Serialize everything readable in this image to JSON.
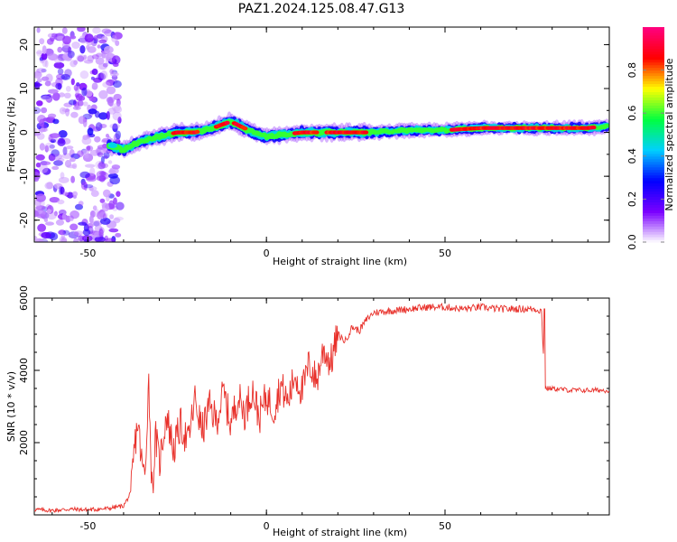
{
  "title": "PAZ1.2024.125.08.47.G13",
  "chart_data": [
    {
      "type": "heatmap",
      "xlabel": "Height of straight line (km)",
      "ylabel": "Frequency (Hz)",
      "xlim": [
        -65,
        96
      ],
      "ylim": [
        -25,
        24
      ],
      "xticks": [
        -50,
        0,
        50
      ],
      "yticks": [
        -20,
        -10,
        0,
        10,
        20
      ],
      "colorbar": {
        "label": "Normalized spectral amplitude",
        "range": [
          0.0,
          1.0
        ],
        "ticks": [
          "0.0",
          "0.2",
          "0.4",
          "0.6",
          "0.8"
        ],
        "colors": [
          "#ffffff",
          "#7b00ff",
          "#0000ff",
          "#00d0ff",
          "#00ff40",
          "#ffff00",
          "#ff0000",
          "#ff0080"
        ]
      },
      "ridge": {
        "description_points_x": [
          -44,
          -40,
          -35,
          -30,
          -25,
          -20,
          -15,
          -10,
          -5,
          0,
          5,
          10,
          20,
          30,
          40,
          50,
          60,
          70,
          80,
          90,
          96
        ],
        "frequency_y": [
          -3,
          -4,
          -2,
          -1,
          0,
          0,
          1,
          2.5,
          0.5,
          -1,
          -0.5,
          0,
          0,
          0,
          0.5,
          0.5,
          1,
          1,
          1,
          1,
          1.5
        ]
      }
    },
    {
      "type": "line",
      "xlabel": "Height of straight line (km)",
      "ylabel": "SNR (10 * v/v)",
      "xlim": [
        -65,
        96
      ],
      "ylim": [
        0,
        6000
      ],
      "xticks": [
        -50,
        0,
        50
      ],
      "yticks": [
        2000,
        4000,
        6000
      ],
      "series": [
        {
          "color": "#e8302a",
          "x": [
            -65,
            -60,
            -55,
            -50,
            -45,
            -40,
            -38,
            -37,
            -36,
            -35,
            -34,
            -33,
            -32,
            -31,
            -30,
            -28,
            -26,
            -24,
            -22,
            -20,
            -18,
            -16,
            -14,
            -12,
            -10,
            -8,
            -6,
            -4,
            -2,
            0,
            2,
            4,
            6,
            8,
            10,
            12,
            14,
            16,
            18,
            20,
            22,
            24,
            26,
            28,
            30,
            35,
            40,
            45,
            50,
            55,
            60,
            65,
            70,
            75,
            77,
            78,
            80,
            85,
            90,
            96
          ],
          "y": [
            150,
            120,
            160,
            140,
            170,
            250,
            600,
            1800,
            2600,
            1500,
            1000,
            3800,
            600,
            2200,
            1400,
            2800,
            1800,
            2500,
            2000,
            3200,
            2300,
            3000,
            2600,
            3400,
            2500,
            3300,
            2800,
            3500,
            2700,
            3300,
            2900,
            3600,
            3100,
            3900,
            3400,
            4200,
            3700,
            4600,
            4200,
            5000,
            4800,
            5200,
            5100,
            5400,
            5600,
            5650,
            5700,
            5750,
            5750,
            5700,
            5750,
            5700,
            5700,
            5700,
            5650,
            3500,
            3500,
            3450,
            3450,
            3450
          ]
        }
      ]
    }
  ]
}
